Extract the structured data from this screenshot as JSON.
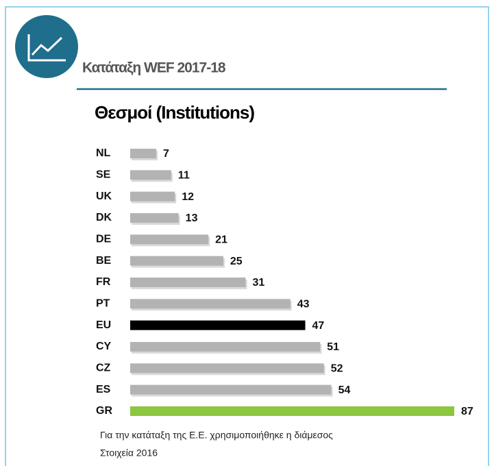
{
  "chart_data": {
    "type": "barh",
    "header": "Κατάταξη WEF 2017-18",
    "title": "Θεσμοί (Institutions)",
    "categories": [
      "NL",
      "SE",
      "UK",
      "DK",
      "DE",
      "BE",
      "FR",
      "PT",
      "EU",
      "CY",
      "CZ",
      "ES",
      "GR"
    ],
    "values": [
      7,
      11,
      12,
      13,
      21,
      25,
      31,
      43,
      47,
      51,
      52,
      54,
      87
    ],
    "colors": [
      "#b3b3b3",
      "#b3b3b3",
      "#b3b3b3",
      "#b3b3b3",
      "#b3b3b3",
      "#b3b3b3",
      "#b3b3b3",
      "#b3b3b3",
      "#000000",
      "#b3b3b3",
      "#b3b3b3",
      "#b3b3b3",
      "#8dc63f"
    ],
    "notes": [
      "Για την κατάταξη της Ε.Ε. χρησιμοποιήθηκε η διάμεσος",
      "Στοιχεία 2016"
    ]
  }
}
